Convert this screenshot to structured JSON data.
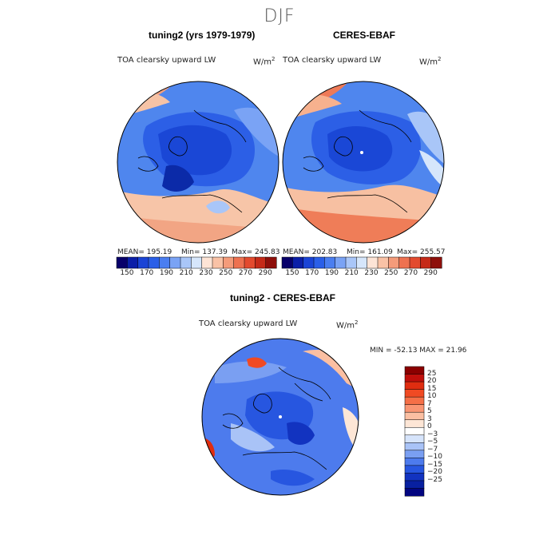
{
  "season": "DJF",
  "panels": [
    {
      "title": "tuning2 (yrs 1979-1979)",
      "variable": "TOA clearsky upward LW",
      "units": "W/m",
      "units_exp": "2",
      "stats": {
        "mean": "MEAN= 195.19",
        "min": "Min= 137.39",
        "max": "Max= 245.83"
      }
    },
    {
      "title": "CERES-EBAF",
      "variable": "TOA clearsky upward LW",
      "units": "W/m",
      "units_exp": "2",
      "stats": {
        "mean": "MEAN= 202.83",
        "min": "Min= 161.09",
        "max": "Max= 255.57"
      }
    },
    {
      "title": "tuning2 - CERES-EBAF",
      "variable": "TOA clearsky upward LW",
      "units": "W/m",
      "units_exp": "2",
      "stats": {
        "minmax": "MIN = -52.13 MAX =  21.96"
      }
    }
  ],
  "colorbar_abs": {
    "ticks": [
      "150",
      "170",
      "190",
      "210",
      "230",
      "250",
      "270",
      "290"
    ],
    "colors": [
      "#08006a",
      "#0b1fa8",
      "#1a44d6",
      "#2a5fe8",
      "#4a7ef0",
      "#7aa3f5",
      "#a9c6f8",
      "#d6e6fb",
      "#fde4d6",
      "#f9c2a6",
      "#f49b7a",
      "#ee7150",
      "#e34a2e",
      "#c52a18",
      "#8e0f0a"
    ]
  },
  "colorbar_diff": {
    "ticks": [
      "25",
      "20",
      "15",
      "10",
      "7",
      "5",
      "3",
      "0",
      "−3",
      "−5",
      "−7",
      "−10",
      "−15",
      "−20",
      "−25"
    ],
    "colors": [
      "#8b0000",
      "#c00f0b",
      "#e02d10",
      "#f04a23",
      "#f56f47",
      "#f99573",
      "#fbbfa2",
      "#fde6d6",
      "#ffffff",
      "#d6e4fb",
      "#a9c3f7",
      "#7a9ff2",
      "#4d7bed",
      "#2756e0",
      "#1233c0",
      "#0820a0",
      "#020580"
    ]
  }
}
